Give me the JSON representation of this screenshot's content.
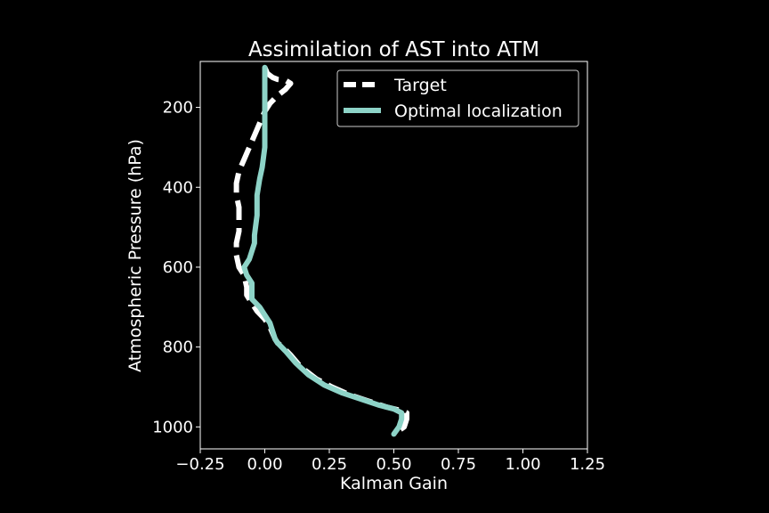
{
  "chart_data": {
    "type": "line",
    "title": "Assimilation of AST into ATM",
    "xlabel": "Kalman Gain",
    "ylabel": "Atmospheric Pressure (hPa)",
    "xlim": [
      -0.25,
      1.25
    ],
    "ylim": [
      1055,
      85
    ],
    "y_inverted": true,
    "xticks": [
      -0.25,
      0.0,
      0.25,
      0.5,
      0.75,
      1.0,
      1.25
    ],
    "xtick_labels": [
      "−0.25",
      "0.00",
      "0.25",
      "0.50",
      "0.75",
      "1.00",
      "1.25"
    ],
    "yticks": [
      200,
      400,
      600,
      800,
      1000
    ],
    "ytick_labels": [
      "200",
      "400",
      "600",
      "800",
      "1000"
    ],
    "grid": false,
    "legend_position": "top-right",
    "background": "#000000",
    "series": [
      {
        "name": "Target",
        "color": "#ffffff",
        "style": "dashed",
        "x": [
          0.0,
          0.01,
          0.03,
          0.05,
          0.08,
          0.1,
          0.08,
          0.05,
          0.02,
          0.0,
          -0.02,
          -0.04,
          -0.06,
          -0.08,
          -0.1,
          -0.11,
          -0.11,
          -0.1,
          -0.1,
          -0.1,
          -0.11,
          -0.11,
          -0.1,
          -0.08,
          -0.07,
          -0.07,
          -0.05,
          -0.03,
          0.0,
          0.02,
          0.03,
          0.04,
          0.05,
          0.07,
          0.1,
          0.14,
          0.2,
          0.26,
          0.33,
          0.4,
          0.47,
          0.52,
          0.55,
          0.55,
          0.54,
          0.5
        ],
        "y": [
          100,
          115,
          125,
          130,
          132,
          140,
          155,
          170,
          190,
          210,
          240,
          270,
          300,
          330,
          360,
          390,
          420,
          450,
          480,
          510,
          540,
          570,
          600,
          620,
          650,
          670,
          690,
          710,
          730,
          750,
          765,
          780,
          790,
          800,
          820,
          850,
          880,
          900,
          920,
          935,
          950,
          958,
          965,
          980,
          1000,
          1018
        ]
      },
      {
        "name": "Optimal localization",
        "color": "#8dd3c7",
        "style": "solid",
        "x": [
          0.0,
          0.0,
          0.0,
          0.0,
          0.0,
          -0.01,
          -0.02,
          -0.03,
          -0.03,
          -0.04,
          -0.04,
          -0.05,
          -0.06,
          -0.07,
          -0.08,
          -0.07,
          -0.05,
          -0.05,
          -0.02,
          0.0,
          0.02,
          0.03,
          0.04,
          0.05,
          0.08,
          0.12,
          0.17,
          0.23,
          0.3,
          0.37,
          0.44,
          0.5,
          0.53,
          0.53,
          0.52,
          0.5
        ],
        "y": [
          100,
          150,
          200,
          250,
          300,
          350,
          380,
          420,
          470,
          520,
          540,
          560,
          580,
          590,
          600,
          620,
          640,
          680,
          700,
          720,
          740,
          760,
          780,
          790,
          810,
          840,
          870,
          895,
          915,
          930,
          945,
          955,
          965,
          980,
          1000,
          1018
        ]
      }
    ]
  }
}
